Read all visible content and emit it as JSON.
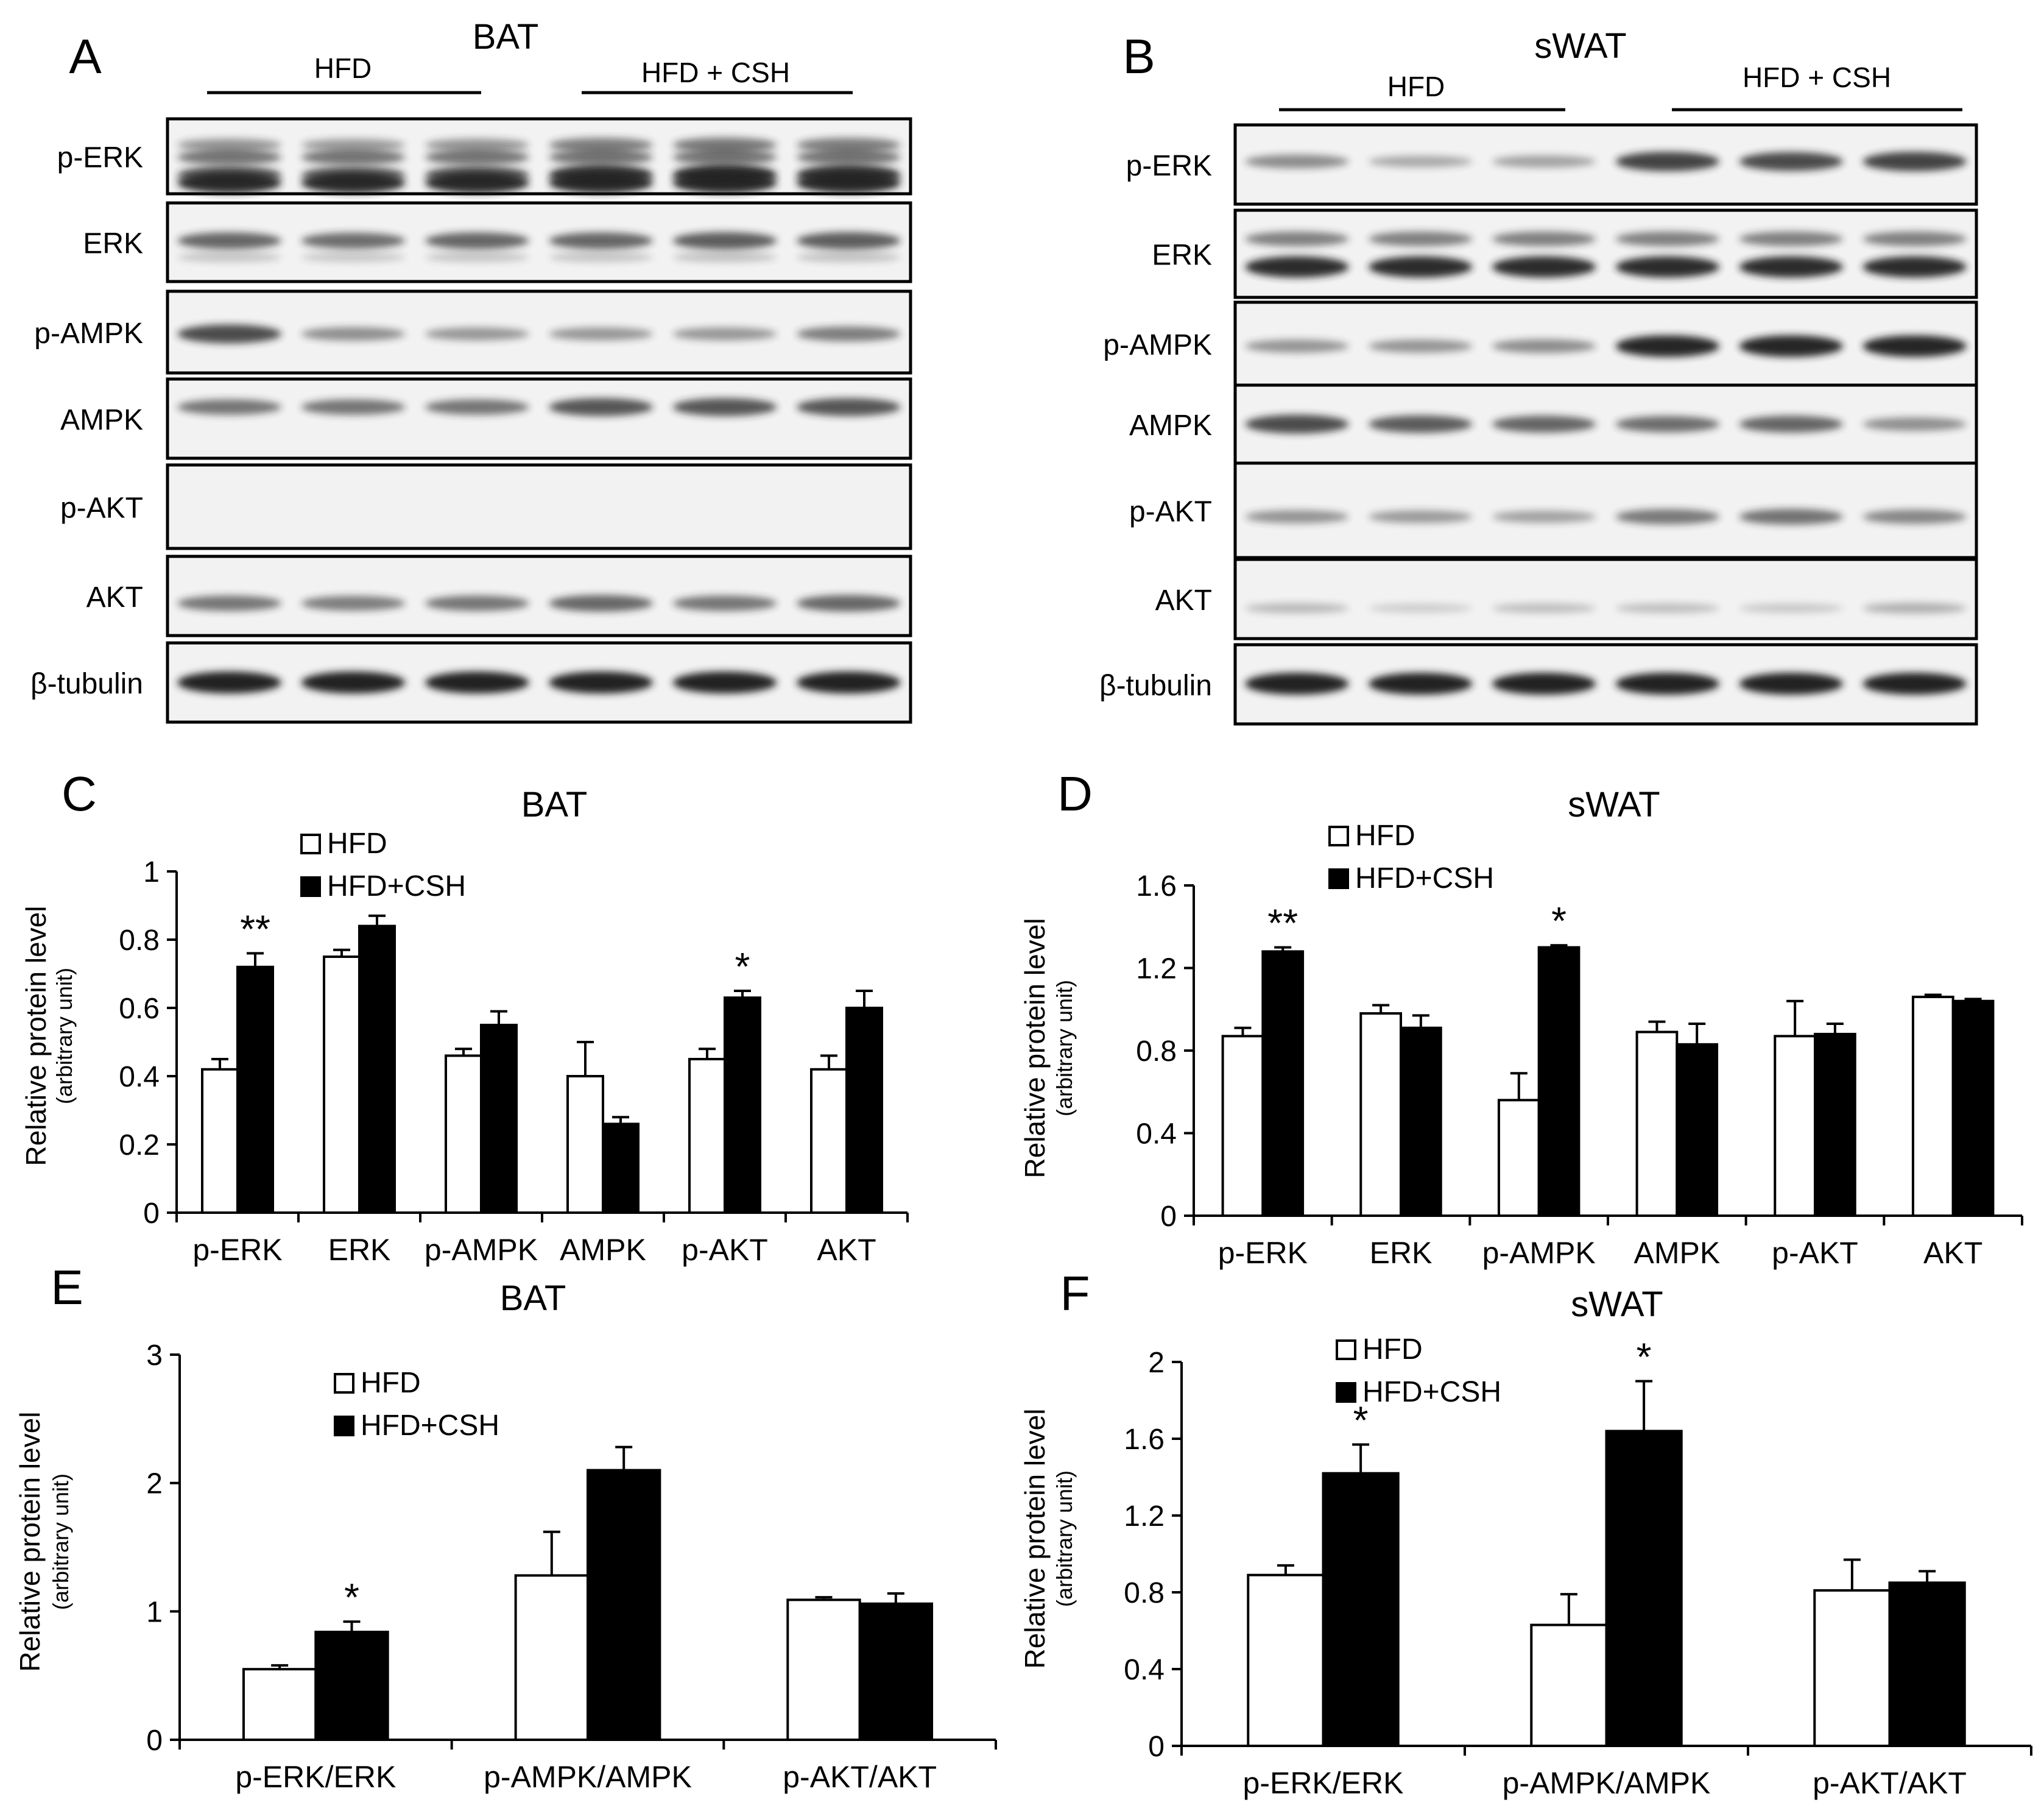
{
  "panels": {
    "A": {
      "letter": "A",
      "title": "BAT",
      "group1": "HFD",
      "group2": "HFD + CSH",
      "lanes": 6,
      "blots": [
        "p-ERK",
        "ERK",
        "p-AMPK",
        "AMPK",
        "p-AKT",
        "AKT",
        "β-tubulin"
      ]
    },
    "B": {
      "letter": "B",
      "title": "sWAT",
      "group1": "HFD",
      "group2": "HFD + CSH",
      "lanes": 6,
      "blots": [
        "p-ERK",
        "ERK",
        "p-AMPK",
        "AMPK",
        "p-AKT",
        "AKT",
        "β-tubulin"
      ]
    }
  },
  "colors": {
    "hfd_fill": "#ffffff",
    "csh_fill": "#000000",
    "blot_bg": "#f2f2f2",
    "band": "#222222"
  },
  "chart_data": [
    {
      "panel": "C",
      "type": "bar",
      "title": "BAT",
      "ylabel": "Relative protein level",
      "ylabel2": "(arbitrary unit)",
      "categories": [
        "p-ERK",
        "ERK",
        "p-AMPK",
        "AMPK",
        "p-AKT",
        "AKT"
      ],
      "ylim": [
        0,
        1
      ],
      "yticks": [
        "0",
        "0.2",
        "0.4",
        "0.6",
        "0.8",
        "1"
      ],
      "ytick_values": [
        0,
        0.2,
        0.4,
        0.6,
        0.8,
        1
      ],
      "series": [
        {
          "name": "HFD",
          "values": [
            0.42,
            0.75,
            0.46,
            0.4,
            0.45,
            0.42
          ],
          "errors": [
            0.03,
            0.02,
            0.02,
            0.1,
            0.03,
            0.04
          ]
        },
        {
          "name": "HFD+CSH",
          "values": [
            0.72,
            0.84,
            0.55,
            0.26,
            0.63,
            0.6
          ],
          "errors": [
            0.04,
            0.03,
            0.04,
            0.02,
            0.02,
            0.05
          ]
        }
      ],
      "annotations": [
        "**",
        "",
        "",
        "",
        "*",
        ""
      ],
      "legend": "top-left"
    },
    {
      "panel": "D",
      "type": "bar",
      "title": "sWAT",
      "ylabel": "Relative protein level",
      "ylabel2": "(arbitrary unit)",
      "categories": [
        "p-ERK",
        "ERK",
        "p-AMPK",
        "AMPK",
        "p-AKT",
        "AKT"
      ],
      "ylim": [
        0,
        1.6
      ],
      "yticks": [
        "0",
        "0.4",
        "0.8",
        "1.2",
        "1.6"
      ],
      "ytick_values": [
        0,
        0.4,
        0.8,
        1.2,
        1.6
      ],
      "series": [
        {
          "name": "HFD",
          "values": [
            0.87,
            0.98,
            0.56,
            0.89,
            0.87,
            1.06
          ],
          "errors": [
            0.04,
            0.04,
            0.13,
            0.05,
            0.17,
            0.01
          ]
        },
        {
          "name": "HFD+CSH",
          "values": [
            1.28,
            0.91,
            1.3,
            0.83,
            0.88,
            1.04
          ],
          "errors": [
            0.02,
            0.06,
            0.01,
            0.1,
            0.05,
            0.01
          ]
        }
      ],
      "annotations": [
        "**",
        "",
        "*",
        "",
        "",
        ""
      ],
      "legend": "top-left"
    },
    {
      "panel": "E",
      "type": "bar",
      "title": "BAT",
      "ylabel": "Relative protein level",
      "ylabel2": "(arbitrary unit)",
      "categories": [
        "p-ERK/ERK",
        "p-AMPK/AMPK",
        "p-AKT/AKT"
      ],
      "ylim": [
        0,
        3
      ],
      "yticks": [
        "0",
        "1",
        "2",
        "3"
      ],
      "ytick_values": [
        0,
        1,
        2,
        3
      ],
      "series": [
        {
          "name": "HFD",
          "values": [
            0.55,
            1.28,
            1.09
          ],
          "errors": [
            0.03,
            0.34,
            0.02
          ]
        },
        {
          "name": "HFD+CSH",
          "values": [
            0.84,
            2.1,
            1.06
          ],
          "errors": [
            0.08,
            0.18,
            0.08
          ]
        }
      ],
      "annotations": [
        "*",
        "",
        ""
      ],
      "legend": "top-left"
    },
    {
      "panel": "F",
      "type": "bar",
      "title": "sWAT",
      "ylabel": "Relative protein level",
      "ylabel2": "(arbitrary unit)",
      "categories": [
        "p-ERK/ERK",
        "p-AMPK/AMPK",
        "p-AKT/AKT"
      ],
      "ylim": [
        0,
        2
      ],
      "yticks": [
        "0",
        "0.4",
        "0.8",
        "1.2",
        "1.6",
        "2"
      ],
      "ytick_values": [
        0,
        0.4,
        0.8,
        1.2,
        1.6,
        2
      ],
      "series": [
        {
          "name": "HFD",
          "values": [
            0.89,
            0.63,
            0.81
          ],
          "errors": [
            0.05,
            0.16,
            0.16
          ]
        },
        {
          "name": "HFD+CSH",
          "values": [
            1.42,
            1.64,
            0.85
          ],
          "errors": [
            0.15,
            0.26,
            0.06
          ]
        }
      ],
      "annotations": [
        "*",
        "*",
        ""
      ],
      "legend": "top-left"
    }
  ]
}
